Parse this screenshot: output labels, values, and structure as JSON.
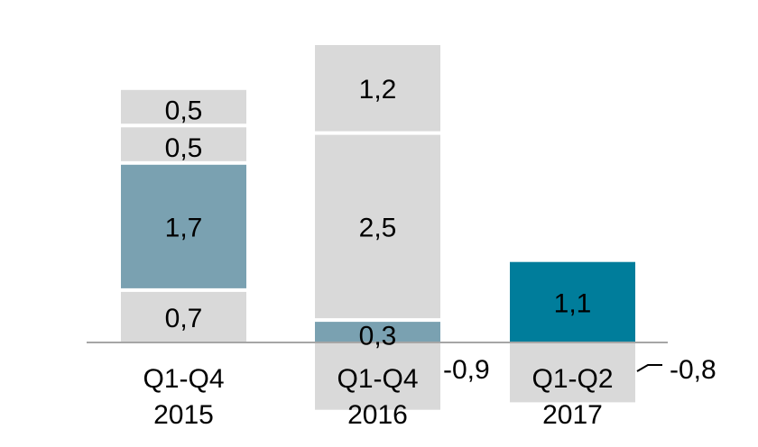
{
  "chart_data": {
    "type": "bar",
    "stacked": true,
    "ylim": [
      -0.9,
      4.0
    ],
    "categories": [
      {
        "line1": "Q1-Q4",
        "line2": "2015"
      },
      {
        "line1": "Q1-Q4",
        "line2": "2016"
      },
      {
        "line1": "Q1-Q2",
        "line2": "2017"
      }
    ],
    "bars": [
      {
        "segments": [
          {
            "value": 0.7,
            "label": "0,7",
            "color": "#d9d9d9"
          },
          {
            "value": 1.7,
            "label": "1,7",
            "color": "#7aa1b1"
          },
          {
            "value": 0.5,
            "label": "0,5",
            "color": "#d9d9d9"
          },
          {
            "value": 0.5,
            "label": "0,5",
            "color": "#d9d9d9"
          }
        ]
      },
      {
        "segments": [
          {
            "value": -0.9,
            "label": "-0,9",
            "color": "#d9d9d9",
            "label_outside": true
          },
          {
            "value": 0.3,
            "label": "0,3",
            "color": "#7aa1b1"
          },
          {
            "value": 2.5,
            "label": "2,5",
            "color": "#d9d9d9"
          },
          {
            "value": 1.2,
            "label": "1,2",
            "color": "#d9d9d9"
          }
        ]
      },
      {
        "segments": [
          {
            "value": -0.8,
            "label": "-0,8",
            "color": "#d9d9d9",
            "label_outside": true,
            "leader_line": true
          },
          {
            "value": 1.1,
            "label": "1,1",
            "color": "#007d9b"
          }
        ]
      }
    ],
    "colors": {
      "gray": "#d9d9d9",
      "steel_blue": "#7aa1b1",
      "teal": "#007d9b",
      "baseline": "#a6a6a6",
      "text": "#000000"
    }
  }
}
